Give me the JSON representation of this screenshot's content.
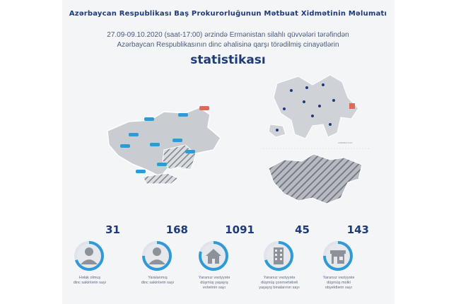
{
  "header": {
    "title": "Azərbaycan Respublikası Baş Prokurorluğunun Mətbuat Xidmətinin Məlumatı",
    "subtitle_line1": "27.09-09.10.2020 (saat-17:00) ərzində Ermənistan silahlı qüvvələri tərəfindən",
    "subtitle_line2": "Azərbaycan Respublikasının dinc əhalisinə qarşı törədilmiş cinayətlərin",
    "heading": "statistikası"
  },
  "maps": {
    "main_icon": "region-map",
    "azerbaijan_icon": "azerbaijan-map",
    "armenia_icon": "armenia-map",
    "azerbaijan_label": "AZƏRBAYCAN"
  },
  "stats": [
    {
      "value": "31",
      "label_line1": "Həlak olmuş",
      "label_line2": "dinc sakinlərin sayı",
      "label_line3": "",
      "icon": "person-icon",
      "fill": 0.7
    },
    {
      "value": "168",
      "label_line1": "Yaralanmış",
      "label_line2": "dinc sakinlərin sayı",
      "label_line3": "",
      "icon": "person-icon",
      "fill": 0.75
    },
    {
      "value": "1091",
      "label_line1": "Yararsız vəziyyətə",
      "label_line2": "düşmüş yaşayış",
      "label_line3": "evlərinin sayı",
      "icon": "house-icon",
      "fill": 0.8
    },
    {
      "value": "45",
      "label_line1": "Yararsız vəziyyətə",
      "label_line2": "düşmüş çoxmərtəbəli",
      "label_line3": "yaşayış binalarının sayı",
      "icon": "building-icon",
      "fill": 0.7
    },
    {
      "value": "143",
      "label_line1": "Yararsız vəziyyətə",
      "label_line2": "düşmüş mülki",
      "label_line3": "obyektlərin sayı",
      "icon": "shop-icon",
      "fill": 0.75
    }
  ],
  "colors": {
    "accent": "#2f9bd6",
    "navy": "#1e3a78",
    "map_gray": "#c6c9ce",
    "hatch": "#8a9099",
    "marker_red": "#e06a5a"
  }
}
